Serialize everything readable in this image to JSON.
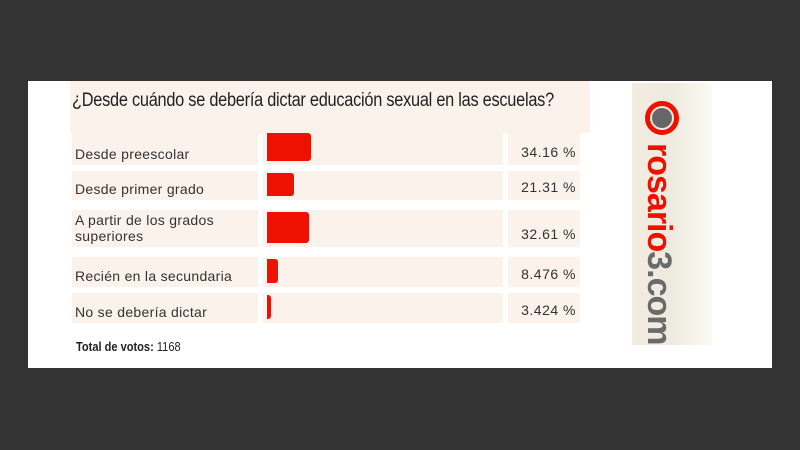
{
  "chart_data": {
    "type": "bar",
    "orientation": "horizontal",
    "title": "¿Desde cuándo se debería dictar educación sexual en las escuelas?",
    "categories": [
      "Desde preescolar",
      "Desde primer grado",
      "A partir de los grados superiores",
      "Recién en la secundaria",
      "No se debería dictar"
    ],
    "values": [
      34.16,
      21.31,
      32.61,
      8.476,
      3.424
    ],
    "value_labels": [
      "34.16 %",
      "21.31 %",
      "32.61 %",
      "8.476 %",
      "3.424 %"
    ],
    "bar_color": "#ee1100",
    "xlim": [
      0,
      100
    ]
  },
  "total": {
    "label": "Total de votos:",
    "value": "1168"
  },
  "logo": {
    "text_red": "rosario",
    "text_gray": "3.com"
  }
}
